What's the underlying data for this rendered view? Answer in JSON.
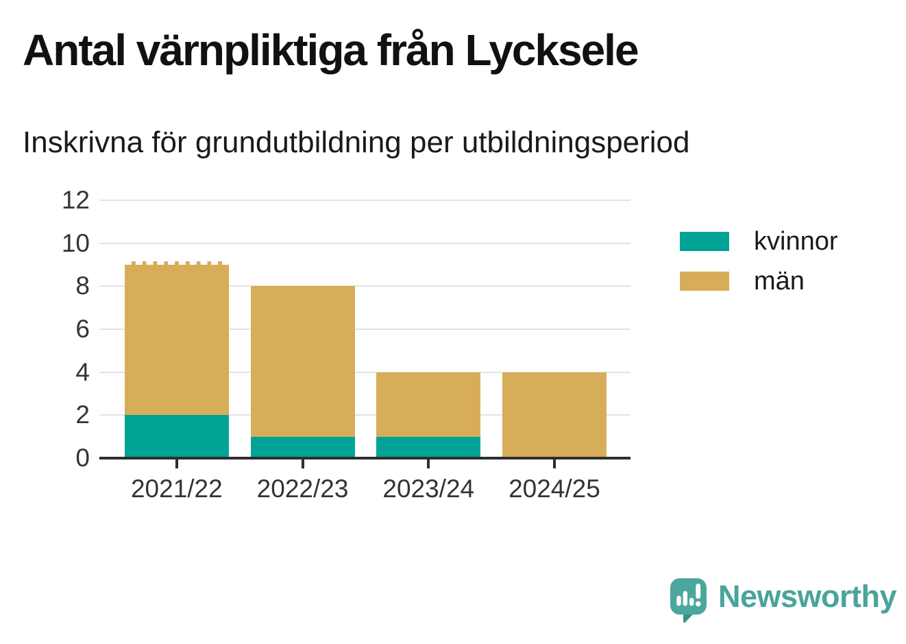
{
  "title": "Antal värnpliktiga från Lycksele",
  "subtitle": "Inskrivna för grundutbildning per utbildningsperiod",
  "colors": {
    "kvinnor": "#00a396",
    "man": "#d8ad5a",
    "axis": "#2e2e2e",
    "gridline": "#e3e3e3",
    "tick_label": "#333333",
    "title_text": "#111111",
    "brand_teal": "#49a49b",
    "brand_bubble": "#4ba79e",
    "brand_bubble_shade": "#3a8e87"
  },
  "chart_data": {
    "type": "bar",
    "stacked": true,
    "title": "Antal värnpliktiga från Lycksele",
    "subtitle": "Inskrivna för grundutbildning per utbildningsperiod",
    "categories": [
      "2021/22",
      "2022/23",
      "2023/24",
      "2024/25"
    ],
    "series": [
      {
        "name": "kvinnor",
        "color": "#00a396",
        "values": [
          2,
          1,
          1,
          0
        ]
      },
      {
        "name": "män",
        "color": "#d8ad5a",
        "values": [
          7,
          7,
          3,
          4
        ]
      }
    ],
    "totals": [
      9,
      8,
      4,
      4
    ],
    "xlabel": "",
    "ylabel": "",
    "ylim": [
      0,
      12
    ],
    "yticks": [
      0,
      2,
      4,
      6,
      8,
      10,
      12
    ],
    "grid": "horizontal",
    "legend_position": "right",
    "dashed_top_category": "2021/22"
  },
  "branding": {
    "name": "Newsworthy"
  }
}
